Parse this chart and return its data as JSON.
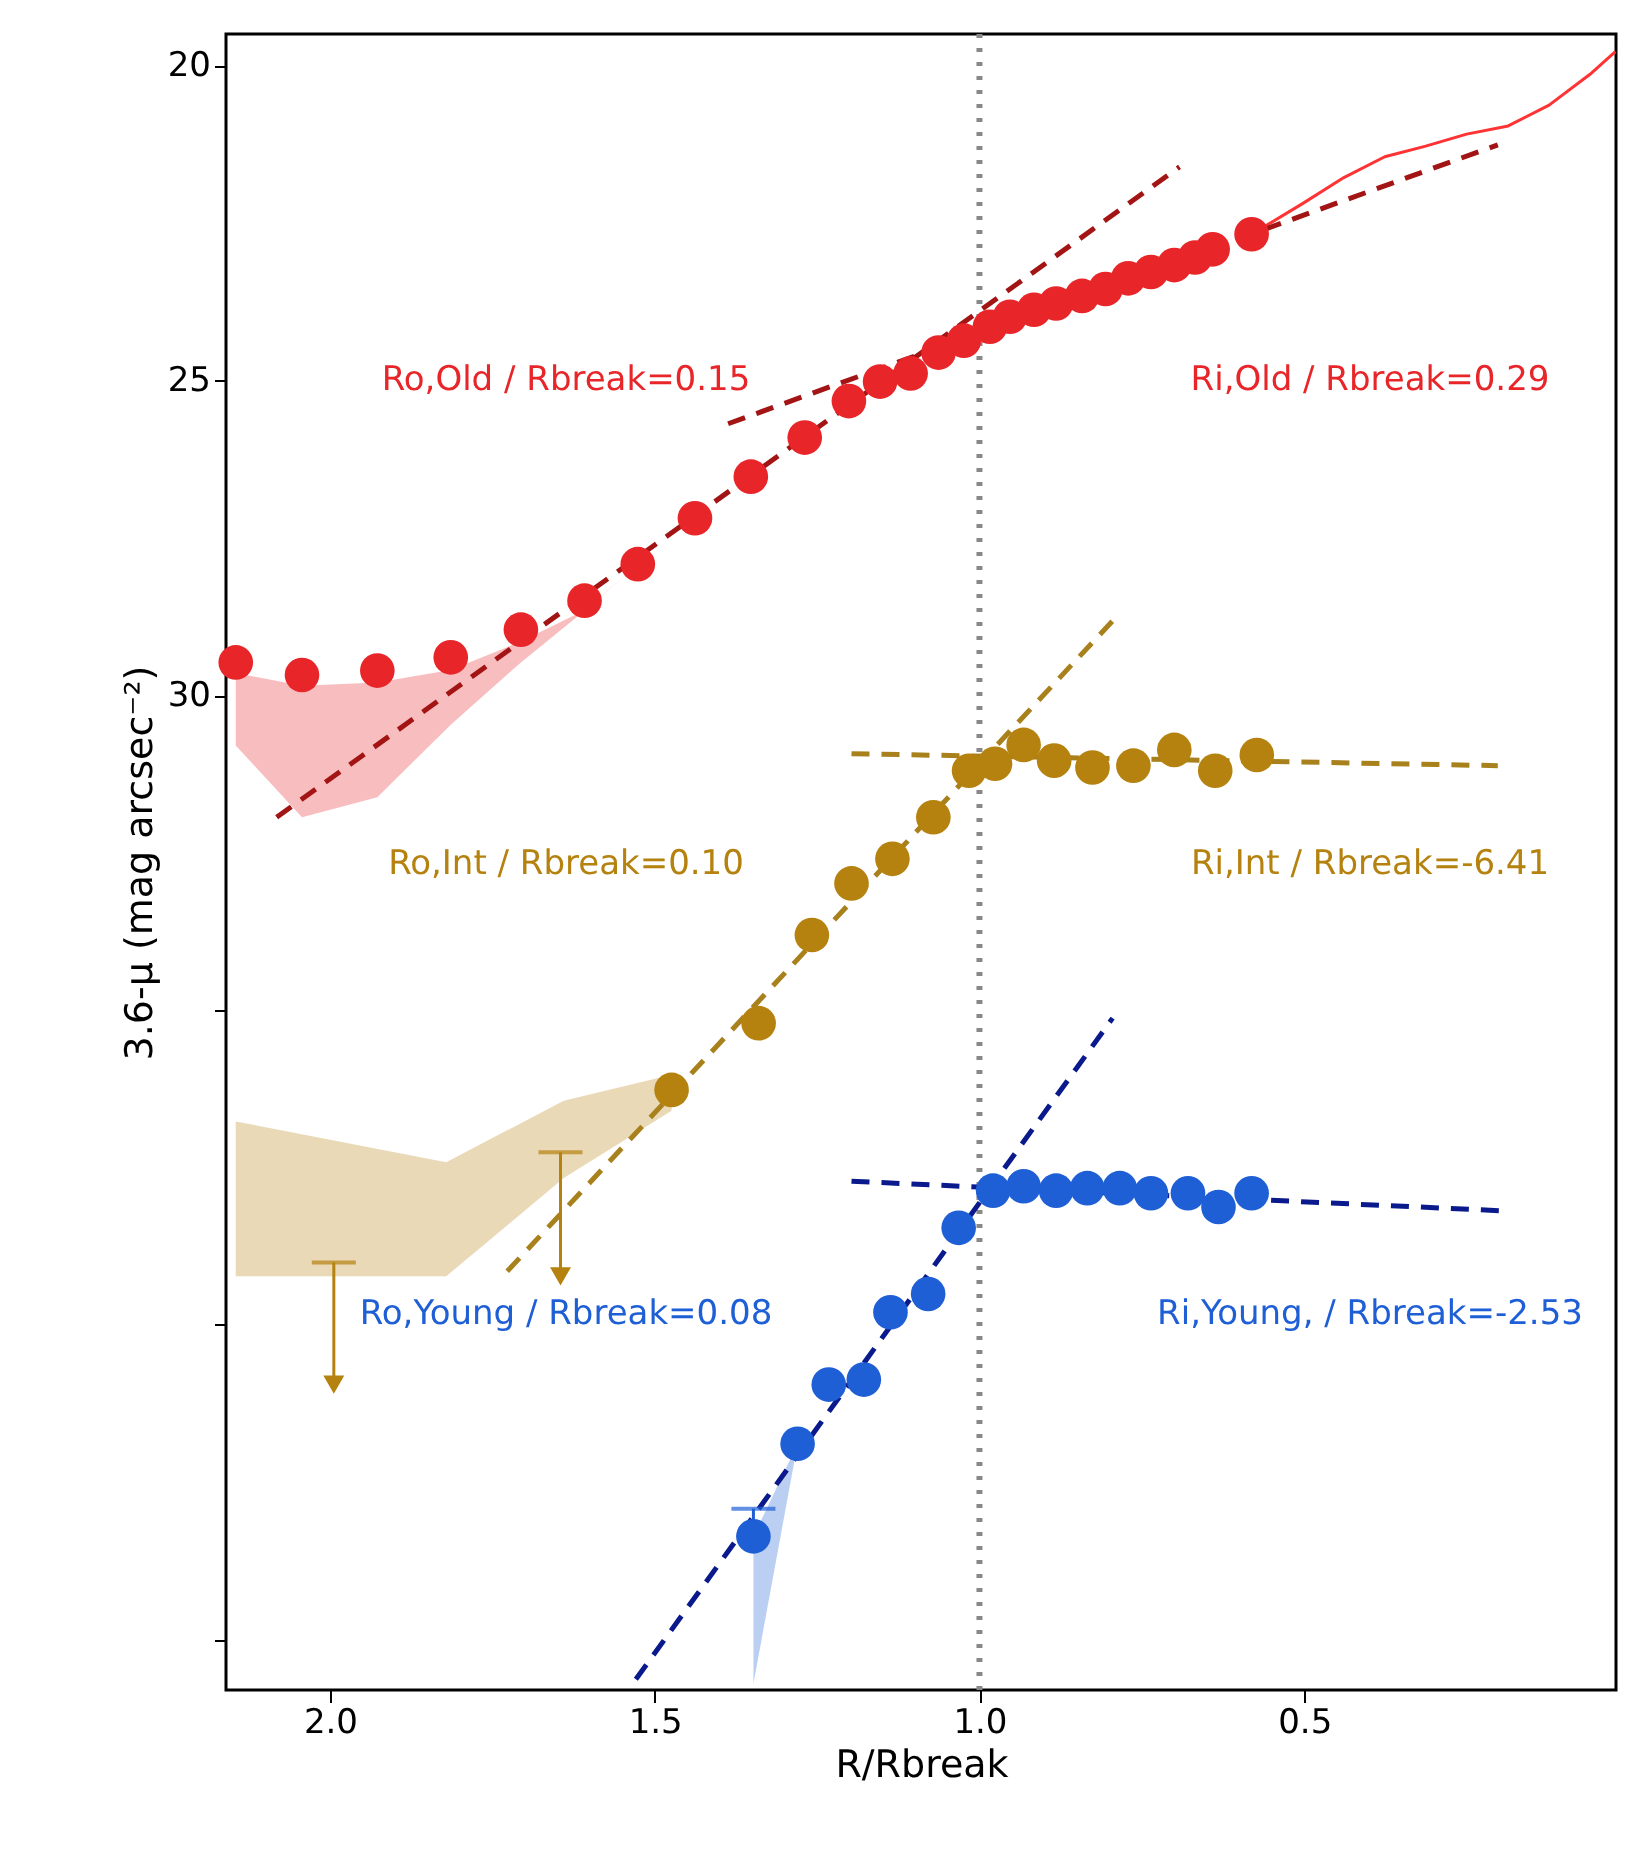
{
  "chart_data": {
    "type": "scatter",
    "xlabel": "R/Rbreak",
    "ylabel": "3.6-μ (mag arcsec⁻²)",
    "xlim": [
      2.16,
      0.02
    ],
    "ylim": [
      45.8,
      19.5
    ],
    "xticks": [
      {
        "value": 2,
        "label": "2.0"
      },
      {
        "value": 1.5,
        "label": "1.5"
      },
      {
        "value": 1,
        "label": "1.0"
      },
      {
        "value": 0.5,
        "label": "0.5"
      }
    ],
    "yticks": [
      20,
      25,
      30,
      {
        "value": 35,
        "label": null
      },
      {
        "value": 40,
        "label": null
      },
      {
        "value": 45,
        "label": null
      }
    ],
    "grid": false,
    "ref_lines": [
      {
        "axis": "x",
        "value": 1.0,
        "color": "#888888",
        "line_style": "dotted"
      }
    ],
    "series": [
      {
        "marker": "circle",
        "color": "#e8262a",
        "x": [
          2.145,
          2.043,
          1.927,
          1.814,
          1.706,
          1.608,
          1.526,
          1.438,
          1.352,
          1.269,
          1.201,
          1.153,
          1.106,
          1.063,
          1.024,
          0.984,
          0.953,
          0.916,
          0.882,
          0.842,
          0.806,
          0.771,
          0.736,
          0.7,
          0.668,
          0.641,
          0.581
        ],
        "values": [
          29.48,
          29.68,
          29.61,
          29.4,
          28.96,
          28.5,
          27.92,
          27.19,
          26.53,
          25.91,
          25.33,
          25.02,
          24.89,
          24.56,
          24.37,
          24.15,
          23.99,
          23.88,
          23.78,
          23.66,
          23.55,
          23.38,
          23.28,
          23.17,
          23.05,
          22.92,
          22.68
        ],
        "lower": [
          30.8,
          31.94,
          31.62,
          30.47,
          29.48,
          28.66,
          27.92,
          null,
          null,
          null,
          null,
          null,
          null,
          null,
          null,
          null,
          null,
          null,
          null,
          null,
          null,
          null,
          null,
          null,
          null,
          null,
          null
        ],
        "upper": [
          29.65,
          29.85,
          29.8,
          29.6,
          29.15,
          28.65,
          27.92,
          null,
          null,
          null,
          null,
          null,
          null,
          null,
          null,
          null,
          null,
          null,
          null,
          null,
          null,
          null,
          null,
          null,
          null,
          null,
          null
        ]
      },
      {
        "type": "line",
        "marker": "none",
        "color": "#ff3333",
        "line_style": "solid",
        "x": [
          0.581,
          0.502,
          0.439,
          0.376,
          0.313,
          0.25,
          0.186,
          0.123,
          0.06,
          0.021
        ],
        "values": [
          22.68,
          22.19,
          21.78,
          21.45,
          21.28,
          21.09,
          20.96,
          20.63,
          20.14,
          19.78
        ]
      },
      {
        "type": "line",
        "marker": "none",
        "color": "#a31515",
        "line_style": "dashed",
        "x": [
          2.082,
          0.692
        ],
        "values": [
          31.94,
          21.61
        ]
      },
      {
        "type": "line",
        "marker": "none",
        "color": "#a31515",
        "line_style": "dashed",
        "x": [
          1.387,
          0.202
        ],
        "values": [
          25.69,
          21.26
        ]
      },
      {
        "marker": "circle",
        "color": "#b5820f",
        "x": [
          2.145,
          1.821,
          1.64,
          1.474,
          1.34,
          1.258,
          1.197,
          1.134,
          1.071,
          1.016,
          0.976,
          0.932,
          0.885,
          0.826,
          0.763,
          0.7,
          0.637,
          0.573
        ],
        "values": [
          null,
          null,
          null,
          36.27,
          35.21,
          33.81,
          32.99,
          32.6,
          31.94,
          31.2,
          31.09,
          30.79,
          31.04,
          31.15,
          31.12,
          30.87,
          31.2,
          30.95
        ],
        "lower": [
          39.23,
          39.23,
          37.67,
          36.6,
          null,
          null,
          null,
          null,
          null,
          null,
          null,
          null,
          null,
          null,
          null,
          null,
          null,
          null
        ],
        "upper": [
          36.77,
          37.42,
          36.44,
          36.03,
          null,
          null,
          null,
          null,
          null,
          null,
          null,
          null,
          null,
          null,
          null,
          null,
          null,
          null
        ]
      },
      {
        "color": "#b5820f",
        "marker": "triangle",
        "x": [
          1.994,
          1.645
        ],
        "values": [
          40.95,
          39.23
        ],
        "errors": [
          [
            39.01,
            40.95
          ],
          [
            37.26,
            39.23
          ]
        ]
      },
      {
        "type": "line",
        "marker": "none",
        "color": "#a8801c",
        "line_style": "dashed",
        "x": [
          1.727,
          0.795
        ],
        "values": [
          39.15,
          28.82
        ]
      },
      {
        "type": "line",
        "marker": "none",
        "color": "#a8801c",
        "line_style": "dashed",
        "x": [
          1.197,
          0.202
        ],
        "values": [
          30.93,
          31.12
        ]
      },
      {
        "marker": "circle",
        "color": "#1f5fd6",
        "x": [
          1.348,
          1.28,
          1.232,
          1.178,
          1.137,
          1.079,
          1.032,
          0.979,
          0.932,
          0.882,
          0.834,
          0.784,
          0.736,
          0.679,
          0.632,
          0.581
        ],
        "values": [
          43.36,
          41.89,
          40.95,
          40.87,
          39.8,
          39.51,
          38.46,
          37.87,
          37.8,
          37.87,
          37.83,
          37.83,
          37.91,
          37.91,
          38.13,
          37.91
        ],
        "errors": [
          [
            42.92,
            43.36
          ],
          null,
          null,
          null,
          null,
          null,
          null,
          null,
          null,
          null,
          null,
          null,
          null,
          null,
          null,
          null
        ],
        "lower": [
          45.7,
          41.89,
          null,
          null,
          null,
          null,
          null,
          null,
          null,
          null,
          null,
          null,
          null,
          null,
          null,
          null
        ],
        "upper": [
          43.36,
          41.89,
          null,
          null,
          null,
          null,
          null,
          null,
          null,
          null,
          null,
          null,
          null,
          null,
          null,
          null
        ]
      },
      {
        "type": "line",
        "marker": "none",
        "color": "#0a1a8c",
        "line_style": "dashed",
        "x": [
          1.529,
          0.795
        ],
        "values": [
          45.63,
          35.13
        ]
      },
      {
        "type": "line",
        "marker": "none",
        "color": "#0a1a8c",
        "line_style": "dashed",
        "x": [
          1.197,
          0.194
        ],
        "values": [
          37.72,
          38.19
        ]
      }
    ],
    "annotations": [
      "Ro,Old / Rbreak=0.15",
      "Ri,Old / Rbreak=0.29",
      "Ro,Int / Rbreak=0.10",
      "Ri,Int / Rbreak=-6.41",
      "Ro,Young / Rbreak=0.08",
      "Ri,Young, / Rbreak=-2.53"
    ]
  }
}
